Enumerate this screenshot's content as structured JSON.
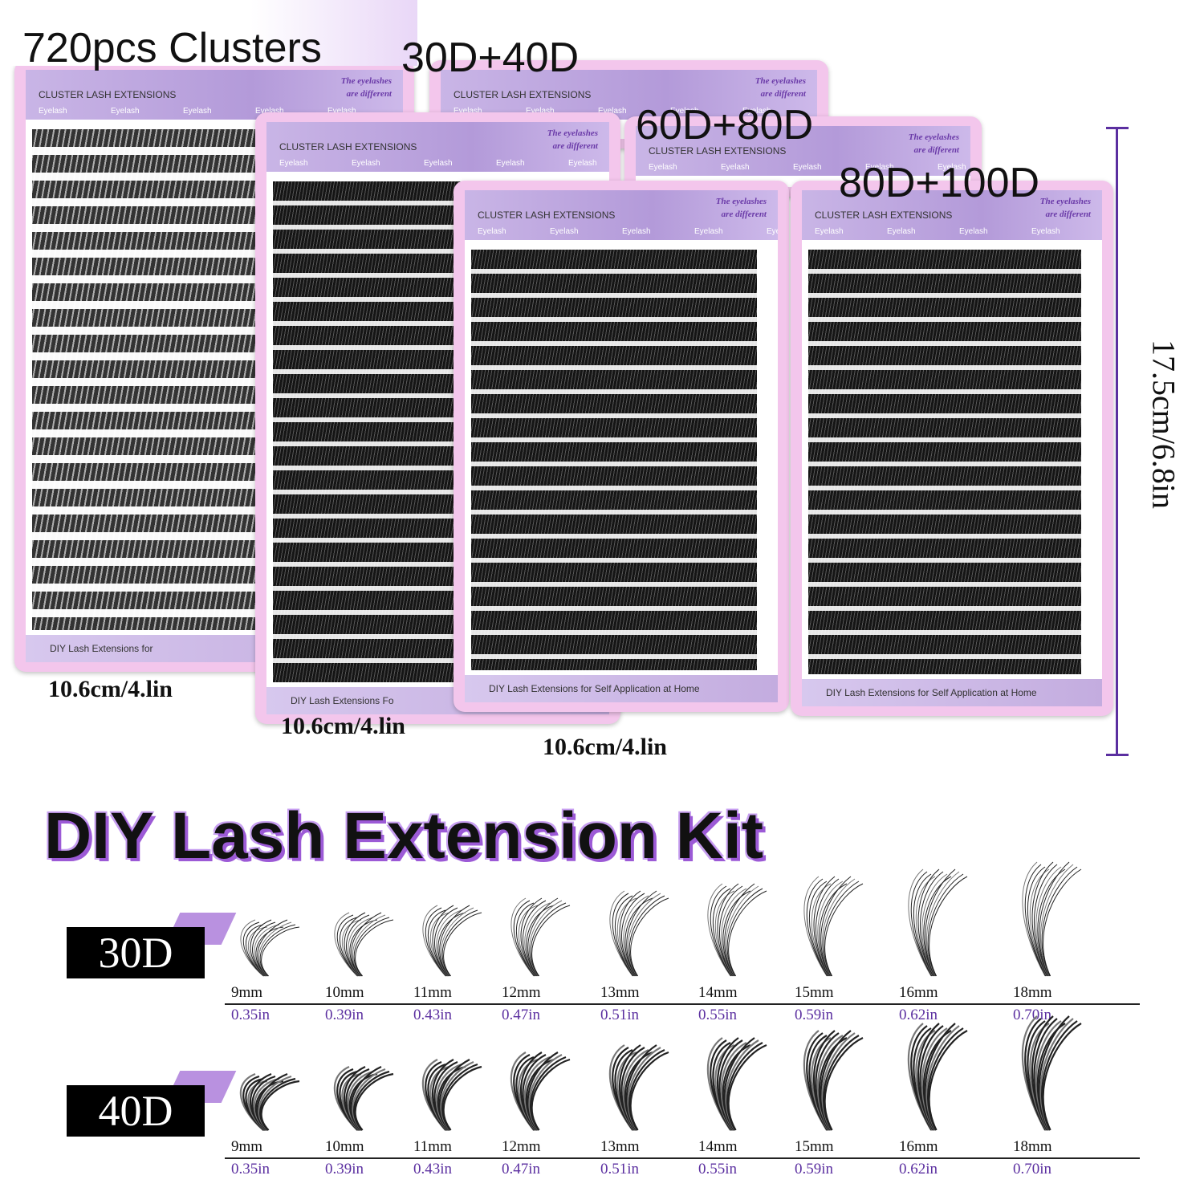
{
  "labels": {
    "count": "720pcs Clusters",
    "set_a": "30D+40D",
    "set_b": "60D+80D",
    "set_c": "80D+100D"
  },
  "trays": [
    {
      "header": "CLUSTER LASH EXTENSIONS",
      "note_1": "The eyelashes",
      "note_2": "are different",
      "tab": "Eyelash",
      "footer": "DIY Lash Extensions for"
    },
    {
      "header": "CLUSTER LASH EXTENSIONS",
      "note_1": "The eyelashes",
      "note_2": "are different",
      "tab": "Eyelash"
    },
    {
      "header": "CLUSTER LASH EXTENSIONS",
      "note_1": "The eyelashes",
      "note_2": "are different",
      "tab": "Eyelash",
      "footer": "DIY Lash Extensions Fo"
    },
    {
      "header": "CLUSTER LASH EXTENSIONS",
      "note_1": "The eyelashes",
      "note_2": "are different",
      "tab": "Eyelash"
    },
    {
      "header": "CLUSTER LASH EXTENSIONS",
      "note_1": "The eyelashes",
      "note_2": "are different",
      "tab": "Eyelash",
      "footer": "DIY Lash Extensions for Self Application at Home"
    },
    {
      "header": "CLUSTER LASH EXTENSIONS",
      "note_1": "The eyelashes",
      "note_2": "are different",
      "tab": "Eyelash",
      "footer": "DIY Lash Extensions for Self Application at Home"
    }
  ],
  "dimensions": {
    "widths": [
      "10.6cm/4.lin",
      "10.6cm/4.lin",
      "10.6cm/4.lin"
    ],
    "height": "17.5cm/6.8in"
  },
  "title": "DIY Lash Extension Kit",
  "rows": [
    {
      "label": "30D",
      "sizes": [
        {
          "mm": "9mm",
          "in": "0.35in"
        },
        {
          "mm": "10mm",
          "in": "0.39in"
        },
        {
          "mm": "11mm",
          "in": "0.43in"
        },
        {
          "mm": "12mm",
          "in": "0.47in"
        },
        {
          "mm": "13mm",
          "in": "0.51in"
        },
        {
          "mm": "14mm",
          "in": "0.55in"
        },
        {
          "mm": "15mm",
          "in": "0.59in"
        },
        {
          "mm": "16mm",
          "in": "0.62in"
        },
        {
          "mm": "18mm",
          "in": "0.70in"
        }
      ]
    },
    {
      "label": "40D",
      "sizes": [
        {
          "mm": "9mm",
          "in": "0.35in"
        },
        {
          "mm": "10mm",
          "in": "0.39in"
        },
        {
          "mm": "11mm",
          "in": "0.43in"
        },
        {
          "mm": "12mm",
          "in": "0.47in"
        },
        {
          "mm": "13mm",
          "in": "0.51in"
        },
        {
          "mm": "14mm",
          "in": "0.55in"
        },
        {
          "mm": "15mm",
          "in": "0.59in"
        },
        {
          "mm": "16mm",
          "in": "0.62in"
        },
        {
          "mm": "18mm",
          "in": "0.70in"
        }
      ]
    }
  ]
}
